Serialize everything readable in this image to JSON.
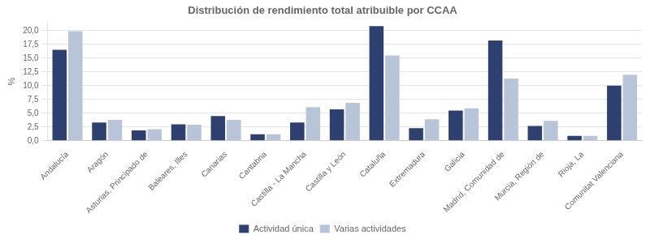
{
  "chart_data": {
    "type": "bar",
    "title": "Distribución de rendimiento total atribuible por CCAA",
    "categories": [
      "Andalucía",
      "Aragón",
      "Asturias, Principado de",
      "Baleares, Illes",
      "Canarias",
      "Cantabria",
      "Castilla - La Mancha",
      "Castilla y León",
      "Cataluña",
      "Extremadura",
      "Galicia",
      "Madrid, Comunidad de",
      "Murcia, Región de",
      "Rioja, La",
      "Comunitat Valenciana"
    ],
    "series": [
      {
        "name": "Actividad única",
        "color": "#2e4070",
        "values": [
          16.5,
          3.3,
          1.9,
          3.0,
          4.5,
          1.2,
          3.3,
          5.7,
          20.8,
          2.3,
          5.5,
          18.2,
          2.7,
          0.9,
          10.0
        ]
      },
      {
        "name": "Varias actividades",
        "color": "#b8c4d8",
        "values": [
          19.9,
          3.8,
          2.1,
          2.9,
          3.8,
          1.2,
          6.1,
          6.9,
          15.5,
          3.9,
          5.9,
          11.3,
          3.6,
          0.9,
          12.0
        ]
      }
    ],
    "ylabel": "%",
    "ylim": [
      0,
      21.5
    ],
    "yticks": [
      {
        "value": 0.0,
        "label": "0,0"
      },
      {
        "value": 2.5,
        "label": "2,5"
      },
      {
        "value": 5.0,
        "label": "5,0"
      },
      {
        "value": 7.5,
        "label": "7,5"
      },
      {
        "value": 10.0,
        "label": "10,0"
      },
      {
        "value": 12.5,
        "label": "12,5"
      },
      {
        "value": 15.0,
        "label": "15,0"
      },
      {
        "value": 17.5,
        "label": "17,5"
      },
      {
        "value": 20.0,
        "label": "20,0"
      }
    ],
    "grid": true,
    "legend": "bottom"
  }
}
